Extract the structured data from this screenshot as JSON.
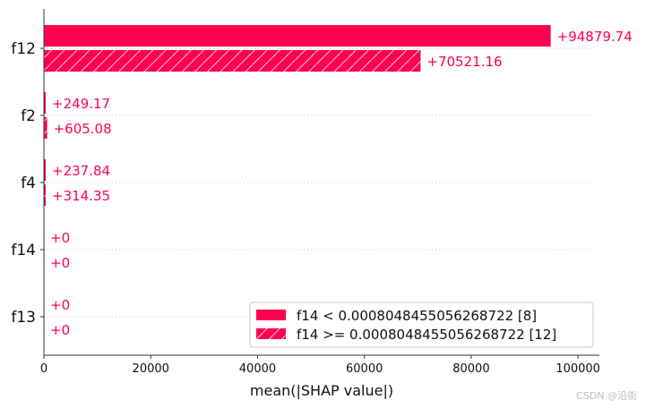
{
  "chart_data": {
    "type": "bar",
    "orientation": "horizontal",
    "categories": [
      "f12",
      "f2",
      "f4",
      "f14",
      "f13"
    ],
    "series": [
      {
        "name": "f14 < 0.0008048455056268722 [8]",
        "values": [
          94879.74,
          249.17,
          237.84,
          0,
          0
        ],
        "labels": [
          "+94879.74",
          "+249.17",
          "+237.84",
          "+0",
          "+0"
        ],
        "pattern": "solid"
      },
      {
        "name": "f14 >= 0.0008048455056268722 [12]",
        "values": [
          70521.16,
          605.08,
          314.35,
          0,
          0
        ],
        "labels": [
          "+70521.16",
          "+605.08",
          "+314.35",
          "+0",
          "+0"
        ],
        "pattern": "hatched"
      }
    ],
    "xlabel": "mean(|SHAP value|)",
    "ylabel": "",
    "xlim": [
      0,
      104000
    ],
    "xticks": [
      0,
      20000,
      40000,
      60000,
      80000,
      100000
    ],
    "xtick_labels": [
      "0",
      "20000",
      "40000",
      "60000",
      "80000",
      "100000"
    ],
    "grid": "dotted row separators",
    "legend_position": "lower-right",
    "bar_color": "#ff0051",
    "axis_color": "#333333",
    "label_color": "#ff0051"
  },
  "watermark": "CSDN @沿街"
}
